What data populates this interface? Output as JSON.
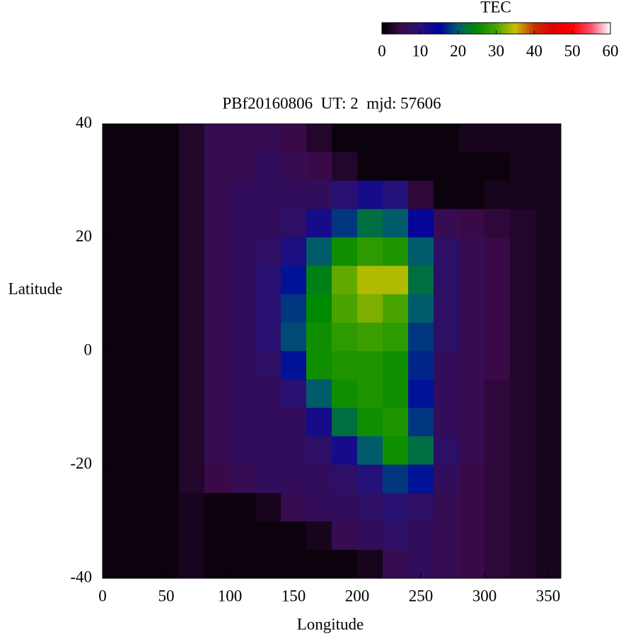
{
  "chart_data": {
    "type": "heatmap",
    "title": "PBf20160806  UT: 2  mjd: 57606",
    "x_label": "Longitude",
    "y_label": "Latitude",
    "xlim": [
      0,
      360
    ],
    "ylim": [
      -40,
      40
    ],
    "xticks": [
      0,
      50,
      100,
      150,
      200,
      250,
      300,
      350
    ],
    "yticks": [
      -40,
      -20,
      0,
      20,
      40
    ],
    "x_bins": [
      0,
      20,
      40,
      60,
      80,
      100,
      120,
      140,
      160,
      180,
      200,
      220,
      240,
      260,
      280,
      300,
      320,
      340,
      360
    ],
    "y_bins": [
      40,
      35,
      30,
      25,
      20,
      15,
      10,
      5,
      0,
      -5,
      -10,
      -15,
      -20,
      -25,
      -30,
      -35,
      -40
    ],
    "z": [
      [
        1,
        1,
        1,
        3,
        6,
        6,
        6,
        5,
        3,
        1,
        1,
        1,
        1,
        1,
        2,
        2,
        2,
        2
      ],
      [
        1,
        1,
        1,
        3,
        6,
        6,
        7,
        6,
        5,
        3,
        1,
        1,
        1,
        1,
        1,
        1,
        2,
        2
      ],
      [
        1,
        1,
        1,
        3,
        6,
        7,
        7,
        7,
        7,
        9,
        12,
        10,
        4,
        1,
        1,
        2,
        2,
        2
      ],
      [
        1,
        1,
        1,
        3,
        6,
        7,
        7,
        8,
        12,
        18,
        22,
        20,
        14,
        6,
        5,
        4,
        3,
        2
      ],
      [
        1,
        1,
        1,
        3,
        6,
        7,
        8,
        11,
        20,
        26,
        28,
        27,
        20,
        8,
        6,
        5,
        3,
        2
      ],
      [
        1,
        1,
        1,
        3,
        6,
        7,
        9,
        16,
        24,
        31,
        34,
        34,
        22,
        8,
        6,
        5,
        3,
        2
      ],
      [
        1,
        1,
        1,
        3,
        6,
        7,
        9,
        18,
        25,
        30,
        32,
        30,
        20,
        8,
        6,
        5,
        3,
        2
      ],
      [
        1,
        1,
        1,
        3,
        6,
        7,
        9,
        19,
        26,
        28,
        29,
        28,
        18,
        8,
        6,
        5,
        3,
        2
      ],
      [
        1,
        1,
        1,
        3,
        6,
        7,
        8,
        16,
        26,
        27,
        27,
        26,
        17,
        7,
        6,
        5,
        3,
        2
      ],
      [
        1,
        1,
        1,
        3,
        6,
        7,
        7,
        9,
        20,
        26,
        27,
        26,
        16,
        7,
        6,
        4,
        3,
        2
      ],
      [
        1,
        1,
        1,
        3,
        6,
        7,
        7,
        7,
        12,
        22,
        26,
        27,
        18,
        7,
        6,
        4,
        3,
        2
      ],
      [
        1,
        1,
        1,
        3,
        6,
        7,
        7,
        7,
        8,
        12,
        20,
        26,
        22,
        8,
        6,
        4,
        3,
        2
      ],
      [
        1,
        1,
        1,
        3,
        5,
        6,
        7,
        7,
        7,
        8,
        10,
        18,
        16,
        7,
        5,
        4,
        3,
        2
      ],
      [
        1,
        1,
        1,
        2,
        1,
        1,
        2,
        6,
        7,
        7,
        8,
        9,
        8,
        6,
        5,
        4,
        3,
        2
      ],
      [
        1,
        1,
        1,
        2,
        1,
        1,
        1,
        1,
        2,
        6,
        7,
        8,
        7,
        6,
        5,
        4,
        3,
        2
      ],
      [
        1,
        1,
        1,
        2,
        1,
        1,
        1,
        1,
        1,
        1,
        2,
        6,
        7,
        6,
        5,
        4,
        3,
        2
      ]
    ],
    "colorbar": {
      "label": "TEC",
      "lim": [
        0,
        60
      ],
      "ticks": [
        0,
        10,
        20,
        30,
        40,
        50,
        60
      ],
      "palette": [
        {
          "value": 0,
          "color": "#000000"
        },
        {
          "value": 5,
          "color": "#3a0a48"
        },
        {
          "value": 10,
          "color": "#24127a"
        },
        {
          "value": 15,
          "color": "#0000a0"
        },
        {
          "value": 20,
          "color": "#005c6a"
        },
        {
          "value": 25,
          "color": "#008a00"
        },
        {
          "value": 30,
          "color": "#4aa400"
        },
        {
          "value": 35,
          "color": "#c8c000"
        },
        {
          "value": 40,
          "color": "#c83000"
        },
        {
          "value": 45,
          "color": "#e00000"
        },
        {
          "value": 50,
          "color": "#ff0000"
        },
        {
          "value": 55,
          "color": "#ff5070"
        },
        {
          "value": 60,
          "color": "#ffffff"
        }
      ]
    }
  }
}
